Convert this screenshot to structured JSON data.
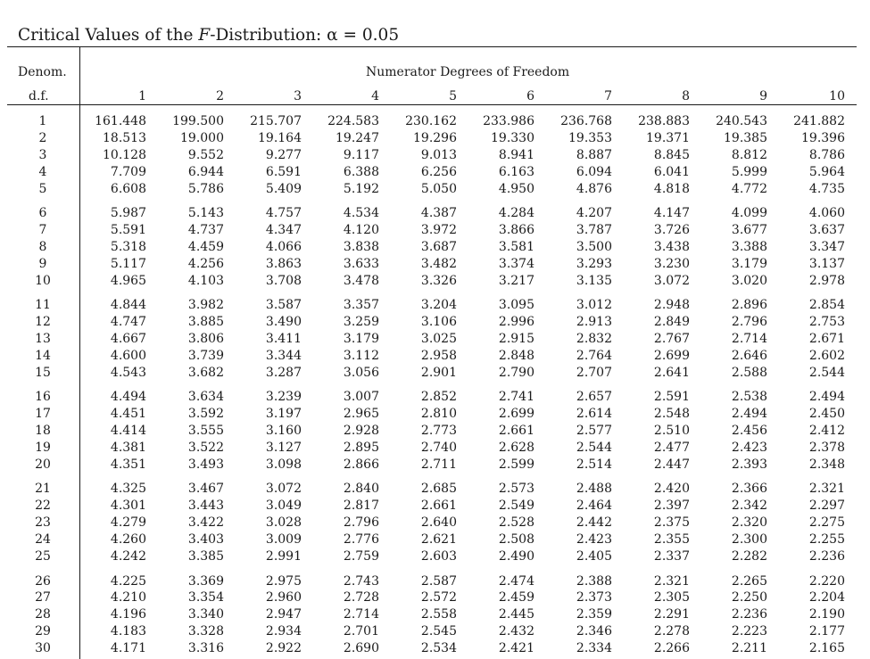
{
  "title": {
    "prefix": "Critical Values of the ",
    "italic": "F",
    "suffix": "-Distribution: α = 0.05"
  },
  "header": {
    "denom_label": "Denom.",
    "df_label": "d.f.",
    "numerator_label": "Numerator Degrees of Freedom",
    "columns": [
      "1",
      "2",
      "3",
      "4",
      "5",
      "6",
      "7",
      "8",
      "9",
      "10"
    ]
  },
  "rows": [
    {
      "df": "1",
      "values": [
        "161.448",
        "199.500",
        "215.707",
        "224.583",
        "230.162",
        "233.986",
        "236.768",
        "238.883",
        "240.543",
        "241.882"
      ]
    },
    {
      "df": "2",
      "values": [
        "18.513",
        "19.000",
        "19.164",
        "19.247",
        "19.296",
        "19.330",
        "19.353",
        "19.371",
        "19.385",
        "19.396"
      ]
    },
    {
      "df": "3",
      "values": [
        "10.128",
        "9.552",
        "9.277",
        "9.117",
        "9.013",
        "8.941",
        "8.887",
        "8.845",
        "8.812",
        "8.786"
      ]
    },
    {
      "df": "4",
      "values": [
        "7.709",
        "6.944",
        "6.591",
        "6.388",
        "6.256",
        "6.163",
        "6.094",
        "6.041",
        "5.999",
        "5.964"
      ]
    },
    {
      "df": "5",
      "values": [
        "6.608",
        "5.786",
        "5.409",
        "5.192",
        "5.050",
        "4.950",
        "4.876",
        "4.818",
        "4.772",
        "4.735"
      ]
    },
    {
      "df": "6",
      "values": [
        "5.987",
        "5.143",
        "4.757",
        "4.534",
        "4.387",
        "4.284",
        "4.207",
        "4.147",
        "4.099",
        "4.060"
      ]
    },
    {
      "df": "7",
      "values": [
        "5.591",
        "4.737",
        "4.347",
        "4.120",
        "3.972",
        "3.866",
        "3.787",
        "3.726",
        "3.677",
        "3.637"
      ]
    },
    {
      "df": "8",
      "values": [
        "5.318",
        "4.459",
        "4.066",
        "3.838",
        "3.687",
        "3.581",
        "3.500",
        "3.438",
        "3.388",
        "3.347"
      ]
    },
    {
      "df": "9",
      "values": [
        "5.117",
        "4.256",
        "3.863",
        "3.633",
        "3.482",
        "3.374",
        "3.293",
        "3.230",
        "3.179",
        "3.137"
      ]
    },
    {
      "df": "10",
      "values": [
        "4.965",
        "4.103",
        "3.708",
        "3.478",
        "3.326",
        "3.217",
        "3.135",
        "3.072",
        "3.020",
        "2.978"
      ]
    },
    {
      "df": "11",
      "values": [
        "4.844",
        "3.982",
        "3.587",
        "3.357",
        "3.204",
        "3.095",
        "3.012",
        "2.948",
        "2.896",
        "2.854"
      ]
    },
    {
      "df": "12",
      "values": [
        "4.747",
        "3.885",
        "3.490",
        "3.259",
        "3.106",
        "2.996",
        "2.913",
        "2.849",
        "2.796",
        "2.753"
      ]
    },
    {
      "df": "13",
      "values": [
        "4.667",
        "3.806",
        "3.411",
        "3.179",
        "3.025",
        "2.915",
        "2.832",
        "2.767",
        "2.714",
        "2.671"
      ]
    },
    {
      "df": "14",
      "values": [
        "4.600",
        "3.739",
        "3.344",
        "3.112",
        "2.958",
        "2.848",
        "2.764",
        "2.699",
        "2.646",
        "2.602"
      ]
    },
    {
      "df": "15",
      "values": [
        "4.543",
        "3.682",
        "3.287",
        "3.056",
        "2.901",
        "2.790",
        "2.707",
        "2.641",
        "2.588",
        "2.544"
      ]
    },
    {
      "df": "16",
      "values": [
        "4.494",
        "3.634",
        "3.239",
        "3.007",
        "2.852",
        "2.741",
        "2.657",
        "2.591",
        "2.538",
        "2.494"
      ]
    },
    {
      "df": "17",
      "values": [
        "4.451",
        "3.592",
        "3.197",
        "2.965",
        "2.810",
        "2.699",
        "2.614",
        "2.548",
        "2.494",
        "2.450"
      ]
    },
    {
      "df": "18",
      "values": [
        "4.414",
        "3.555",
        "3.160",
        "2.928",
        "2.773",
        "2.661",
        "2.577",
        "2.510",
        "2.456",
        "2.412"
      ]
    },
    {
      "df": "19",
      "values": [
        "4.381",
        "3.522",
        "3.127",
        "2.895",
        "2.740",
        "2.628",
        "2.544",
        "2.477",
        "2.423",
        "2.378"
      ]
    },
    {
      "df": "20",
      "values": [
        "4.351",
        "3.493",
        "3.098",
        "2.866",
        "2.711",
        "2.599",
        "2.514",
        "2.447",
        "2.393",
        "2.348"
      ]
    },
    {
      "df": "21",
      "values": [
        "4.325",
        "3.467",
        "3.072",
        "2.840",
        "2.685",
        "2.573",
        "2.488",
        "2.420",
        "2.366",
        "2.321"
      ]
    },
    {
      "df": "22",
      "values": [
        "4.301",
        "3.443",
        "3.049",
        "2.817",
        "2.661",
        "2.549",
        "2.464",
        "2.397",
        "2.342",
        "2.297"
      ]
    },
    {
      "df": "23",
      "values": [
        "4.279",
        "3.422",
        "3.028",
        "2.796",
        "2.640",
        "2.528",
        "2.442",
        "2.375",
        "2.320",
        "2.275"
      ]
    },
    {
      "df": "24",
      "values": [
        "4.260",
        "3.403",
        "3.009",
        "2.776",
        "2.621",
        "2.508",
        "2.423",
        "2.355",
        "2.300",
        "2.255"
      ]
    },
    {
      "df": "25",
      "values": [
        "4.242",
        "3.385",
        "2.991",
        "2.759",
        "2.603",
        "2.490",
        "2.405",
        "2.337",
        "2.282",
        "2.236"
      ]
    },
    {
      "df": "26",
      "values": [
        "4.225",
        "3.369",
        "2.975",
        "2.743",
        "2.587",
        "2.474",
        "2.388",
        "2.321",
        "2.265",
        "2.220"
      ]
    },
    {
      "df": "27",
      "values": [
        "4.210",
        "3.354",
        "2.960",
        "2.728",
        "2.572",
        "2.459",
        "2.373",
        "2.305",
        "2.250",
        "2.204"
      ]
    },
    {
      "df": "28",
      "values": [
        "4.196",
        "3.340",
        "2.947",
        "2.714",
        "2.558",
        "2.445",
        "2.359",
        "2.291",
        "2.236",
        "2.190"
      ]
    },
    {
      "df": "29",
      "values": [
        "4.183",
        "3.328",
        "2.934",
        "2.701",
        "2.545",
        "2.432",
        "2.346",
        "2.278",
        "2.223",
        "2.177"
      ]
    },
    {
      "df": "30",
      "values": [
        "4.171",
        "3.316",
        "2.922",
        "2.690",
        "2.534",
        "2.421",
        "2.334",
        "2.266",
        "2.211",
        "2.165"
      ]
    }
  ]
}
